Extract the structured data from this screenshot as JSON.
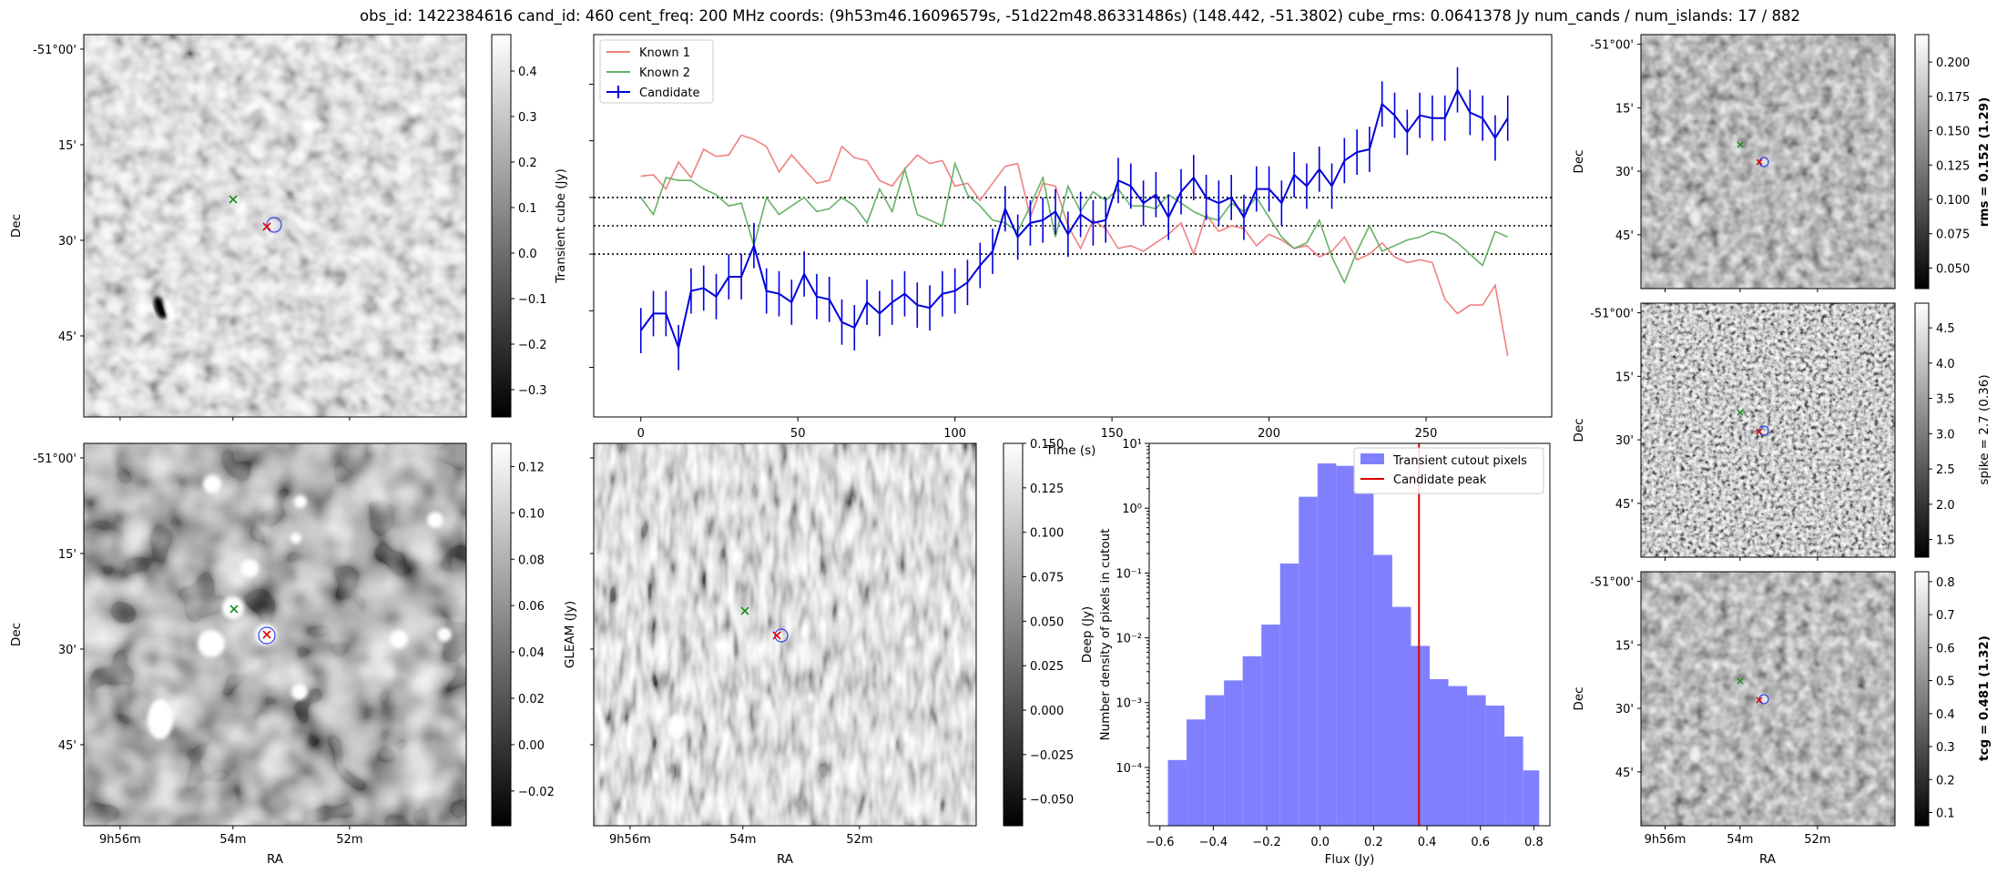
{
  "figure_title": "obs_id: 1422384616 cand_id: 460 cent_freq: 200 MHz coords: (9h53m46.16096579s, -51d22m48.86331486s) (148.442, -51.3802) cube_rms: 0.0641378 Jy num_cands / num_islands: 17 / 882",
  "colors": {
    "known1": "#f08080",
    "known2": "#66b266",
    "candidate": "#0000dd",
    "hist_fill": "#8080ff",
    "peak": "#dd0000",
    "green_marker": "#1a8a1a",
    "red_marker": "#dd0000"
  },
  "sky_axes": {
    "dec_ticks": [
      "-51°00'",
      "15'",
      "30'",
      "45'"
    ],
    "ra_ticks": [
      "9h56m",
      "54m",
      "52m"
    ],
    "xlabel": "RA",
    "ylabel": "Dec"
  },
  "panels": {
    "transient_cube": {
      "colorbar_label": "Transient cube (Jy)",
      "colorbar_ticks": [
        "0.4",
        "0.3",
        "0.2",
        "0.1",
        "0.0",
        "−0.1",
        "−0.2",
        "−0.3"
      ],
      "range": [
        -0.36,
        0.48
      ]
    },
    "gleam_deep": {
      "colorbar_ticks": [
        "0.12",
        "0.10",
        "0.08",
        "0.06",
        "0.04",
        "0.02",
        "0.00",
        "−0.02"
      ],
      "range": [
        -0.035,
        0.13
      ]
    },
    "gleam": {
      "colorbar_label": "GLEAM (Jy)",
      "colorbar_ticks": [
        "0.150",
        "0.125",
        "0.100",
        "0.075",
        "0.050",
        "0.025",
        "0.000",
        "−0.025",
        "−0.050"
      ],
      "range": [
        -0.065,
        0.15
      ]
    },
    "rms": {
      "colorbar_label": "rms = 0.152 (1.29)",
      "colorbar_ticks": [
        "0.200",
        "0.175",
        "0.150",
        "0.125",
        "0.100",
        "0.075",
        "0.050"
      ],
      "range": [
        0.035,
        0.22
      ]
    },
    "spike": {
      "colorbar_label": "spike = 2.7 (0.36)",
      "colorbar_ticks": [
        "4.5",
        "4.0",
        "3.5",
        "3.0",
        "2.5",
        "2.0",
        "1.5"
      ],
      "range": [
        1.25,
        4.85
      ]
    },
    "tcg": {
      "colorbar_label": "tcg = 0.481 (1.32)",
      "colorbar_ticks": [
        "0.8",
        "0.7",
        "0.6",
        "0.5",
        "0.4",
        "0.3",
        "0.2",
        "0.1"
      ],
      "range": [
        0.06,
        0.83
      ]
    }
  },
  "chart_data": [
    {
      "type": "line",
      "title": "",
      "xlabel": "Time (s)",
      "ylabel": "",
      "xlim": [
        -15,
        290
      ],
      "ylim": [
        -1.35,
        1.35
      ],
      "x_ticks": [
        "0",
        "50",
        "100",
        "150",
        "200",
        "250"
      ],
      "y_ticks_hidden": true,
      "legend": [
        "Known 1",
        "Known 2",
        "Candidate"
      ],
      "legend_position": "top-left",
      "hlines": [
        0.2,
        0.0,
        -0.2
      ],
      "x": [
        0,
        4,
        8,
        12,
        16,
        20,
        24,
        28,
        32,
        36,
        40,
        44,
        48,
        52,
        56,
        60,
        64,
        68,
        72,
        76,
        80,
        84,
        88,
        92,
        96,
        100,
        104,
        108,
        112,
        116,
        120,
        124,
        128,
        132,
        136,
        140,
        144,
        148,
        152,
        156,
        160,
        164,
        168,
        172,
        176,
        180,
        184,
        188,
        192,
        196,
        200,
        204,
        208,
        212,
        216,
        220,
        224,
        228,
        232,
        236,
        240,
        244,
        248,
        252,
        256,
        260,
        264,
        268,
        272,
        276
      ],
      "series": [
        {
          "name": "Known 1",
          "values": [
            0.35,
            0.36,
            0.26,
            0.45,
            0.34,
            0.54,
            0.49,
            0.5,
            0.64,
            0.61,
            0.56,
            0.38,
            0.5,
            0.4,
            0.3,
            0.32,
            0.56,
            0.48,
            0.46,
            0.32,
            0.28,
            0.4,
            0.5,
            0.44,
            0.46,
            0.28,
            0.3,
            0.18,
            0.3,
            0.42,
            0.44,
            0.06,
            0.3,
            0.28,
            0.0,
            -0.16,
            0.04,
            -0.02,
            -0.16,
            -0.14,
            -0.18,
            -0.12,
            -0.06,
            0.02,
            -0.2,
            0.08,
            -0.04,
            0.0,
            -0.02,
            -0.14,
            -0.06,
            -0.1,
            -0.16,
            -0.14,
            -0.22,
            -0.18,
            -0.08,
            -0.24,
            -0.2,
            -0.12,
            -0.22,
            -0.26,
            -0.24,
            -0.26,
            -0.52,
            -0.62,
            -0.56,
            -0.56,
            -0.42,
            -0.92
          ]
        },
        {
          "name": "Known 2",
          "values": [
            0.2,
            0.08,
            0.34,
            0.32,
            0.32,
            0.26,
            0.22,
            0.14,
            0.16,
            -0.14,
            0.2,
            0.08,
            0.14,
            0.2,
            0.1,
            0.12,
            0.2,
            0.14,
            0.02,
            0.26,
            0.1,
            0.4,
            0.08,
            0.04,
            0.0,
            0.44,
            0.22,
            0.14,
            0.04,
            0.02,
            -0.04,
            0.14,
            0.34,
            -0.08,
            0.28,
            0.1,
            0.24,
            0.18,
            0.26,
            0.14,
            0.14,
            0.12,
            0.22,
            0.16,
            0.1,
            0.06,
            0.04,
            0.16,
            0.1,
            0.2,
            0.06,
            -0.08,
            -0.16,
            -0.12,
            0.04,
            -0.22,
            -0.4,
            -0.18,
            0.0,
            -0.18,
            -0.14,
            -0.1,
            -0.08,
            -0.04,
            -0.06,
            -0.12,
            -0.2,
            -0.28,
            -0.04,
            -0.08
          ]
        },
        {
          "name": "Candidate",
          "values": [
            -0.74,
            -0.62,
            -0.62,
            -0.86,
            -0.46,
            -0.44,
            -0.5,
            -0.36,
            -0.36,
            -0.14,
            -0.46,
            -0.48,
            -0.54,
            -0.34,
            -0.5,
            -0.52,
            -0.68,
            -0.72,
            -0.54,
            -0.62,
            -0.54,
            -0.48,
            -0.56,
            -0.58,
            -0.48,
            -0.46,
            -0.4,
            -0.28,
            -0.18,
            0.12,
            -0.08,
            0.02,
            0.04,
            0.1,
            -0.06,
            0.08,
            0.02,
            0.04,
            0.32,
            0.28,
            0.16,
            0.22,
            0.06,
            0.24,
            0.34,
            0.2,
            0.16,
            0.2,
            0.06,
            0.26,
            0.26,
            0.16,
            0.36,
            0.28,
            0.4,
            0.28,
            0.46,
            0.52,
            0.54,
            0.86,
            0.78,
            0.66,
            0.78,
            0.76,
            0.76,
            0.96,
            0.8,
            0.76,
            0.62,
            0.76
          ]
        }
      ],
      "candidate_error": 0.16
    },
    {
      "type": "bar",
      "title": "",
      "xlabel": "Flux (Jy)",
      "ylabel": "Number density of pixels in cutout",
      "ylabel_overlap": "Deep (Jy)",
      "yscale": "log",
      "xlim": [
        -0.64,
        0.86
      ],
      "ylim_exp": [
        -4.9,
        1
      ],
      "x_ticks": [
        "−0.6",
        "−0.4",
        "−0.2",
        "0.0",
        "0.2",
        "0.4",
        "0.6",
        "0.8"
      ],
      "y_ticks": [
        "10¹",
        "10⁰",
        "10⁻¹",
        "10⁻²",
        "10⁻³",
        "10⁻⁴"
      ],
      "legend": [
        "Transient cutout pixels",
        "Candidate peak"
      ],
      "legend_position": "top-right",
      "bin_edges": [
        -0.57,
        -0.5,
        -0.43,
        -0.36,
        -0.29,
        -0.22,
        -0.15,
        -0.08,
        -0.01,
        0.06,
        0.13,
        0.2,
        0.27,
        0.34,
        0.41,
        0.48,
        0.55,
        0.62,
        0.69,
        0.76,
        0.82
      ],
      "density": [
        0.00013,
        0.00055,
        0.0013,
        0.0022,
        0.0052,
        0.016,
        0.14,
        1.5,
        4.9,
        4.5,
        1.7,
        0.19,
        0.03,
        0.0075,
        0.0023,
        0.0018,
        0.0013,
        0.0009,
        0.0003,
        9e-05
      ],
      "candidate_peak": 0.37
    }
  ]
}
